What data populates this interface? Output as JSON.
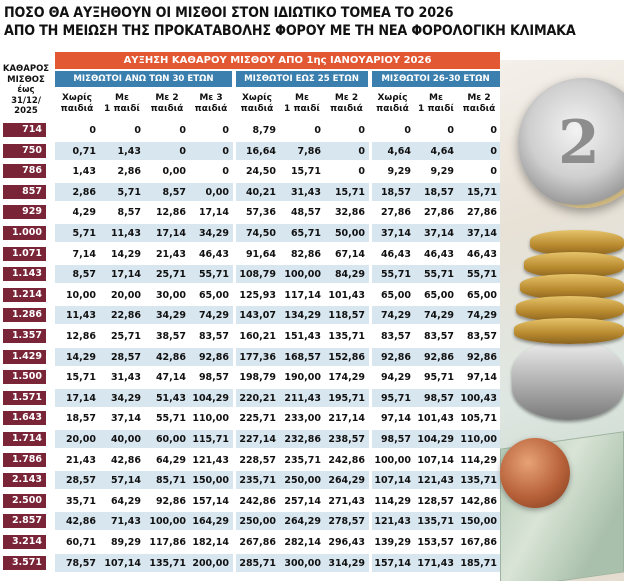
{
  "title_line1": "ΠΟΣΟ ΘΑ ΑΥΞΗΘΟΥΝ ΟΙ ΜΙΣΘΟΙ ΣΤΟΝ ΙΔΙΩΤΙΚΟ ΤΟΜΕΑ ΤΟ 2026",
  "title_line2": "ΑΠΟ ΤΗ ΜΕΙΩΣΗ ΤΗΣ ΠΡΟΚΑΤΑΒΟΛΗΣ ΦΟΡΟΥ ΜΕ ΤΗ ΝΕΑ ΦΟΡΟΛΟΓΙΚΗ ΚΛΙΜΑΚΑ",
  "left_header": [
    "ΚΑΘΑΡΟΣ",
    "ΜΙΣΘΟΣ",
    "έως",
    "31/12/",
    "2025"
  ],
  "banner": "ΑΥΞΗΣΗ ΚΑΘΑΡΟΥ ΜΙΣΘΟΥ ΑΠΟ 1ης ΙΑΝΟΥΑΡΙΟΥ 2026",
  "groups": [
    "ΜΙΣΘΩΤΟΙ ΑΝΩ ΤΩΝ 30 ΕΤΩΝ",
    "ΜΙΣΘΩΤΟΙ ΕΩΣ 25 ΕΤΩΝ",
    "ΜΙΣΘΩΤΟΙ 26-30 ΕΤΩΝ"
  ],
  "sub_headers": [
    [
      "Χωρίς",
      "παιδιά"
    ],
    [
      "Με",
      "1 παιδί"
    ],
    [
      "Με 2",
      "παιδιά"
    ],
    [
      "Με 3",
      "παιδιά"
    ],
    [
      "Χωρίς",
      "παιδιά"
    ],
    [
      "Με",
      "1 παιδί"
    ],
    [
      "Με 2",
      "παιδιά"
    ],
    [
      "Χωρίς",
      "παιδιά"
    ],
    [
      "Με",
      "1 παιδί"
    ],
    [
      "Με 2",
      "παιδιά"
    ]
  ],
  "rows": [
    {
      "salary": "714",
      "values": [
        "0",
        "0",
        "0",
        "0",
        "8,79",
        "0",
        "0",
        "0",
        "0",
        "0"
      ]
    },
    {
      "salary": "750",
      "values": [
        "0,71",
        "1,43",
        "0",
        "0",
        "16,64",
        "7,86",
        "0",
        "4,64",
        "4,64",
        "0"
      ]
    },
    {
      "salary": "786",
      "values": [
        "1,43",
        "2,86",
        "0,00",
        "0",
        "24,50",
        "15,71",
        "0",
        "9,29",
        "9,29",
        "0"
      ]
    },
    {
      "salary": "857",
      "values": [
        "2,86",
        "5,71",
        "8,57",
        "0,00",
        "40,21",
        "31,43",
        "15,71",
        "18,57",
        "18,57",
        "15,71"
      ]
    },
    {
      "salary": "929",
      "values": [
        "4,29",
        "8,57",
        "12,86",
        "17,14",
        "57,36",
        "48,57",
        "32,86",
        "27,86",
        "27,86",
        "27,86"
      ]
    },
    {
      "salary": "1.000",
      "values": [
        "5,71",
        "11,43",
        "17,14",
        "34,29",
        "74,50",
        "65,71",
        "50,00",
        "37,14",
        "37,14",
        "37,14"
      ]
    },
    {
      "salary": "1.071",
      "values": [
        "7,14",
        "14,29",
        "21,43",
        "46,43",
        "91,64",
        "82,86",
        "67,14",
        "46,43",
        "46,43",
        "46,43"
      ]
    },
    {
      "salary": "1.143",
      "values": [
        "8,57",
        "17,14",
        "25,71",
        "55,71",
        "108,79",
        "100,00",
        "84,29",
        "55,71",
        "55,71",
        "55,71"
      ]
    },
    {
      "salary": "1.214",
      "values": [
        "10,00",
        "20,00",
        "30,00",
        "65,00",
        "125,93",
        "117,14",
        "101,43",
        "65,00",
        "65,00",
        "65,00"
      ]
    },
    {
      "salary": "1.286",
      "values": [
        "11,43",
        "22,86",
        "34,29",
        "74,29",
        "143,07",
        "134,29",
        "118,57",
        "74,29",
        "74,29",
        "74,29"
      ]
    },
    {
      "salary": "1.357",
      "values": [
        "12,86",
        "25,71",
        "38,57",
        "83,57",
        "160,21",
        "151,43",
        "135,71",
        "83,57",
        "83,57",
        "83,57"
      ]
    },
    {
      "salary": "1.429",
      "values": [
        "14,29",
        "28,57",
        "42,86",
        "92,86",
        "177,36",
        "168,57",
        "152,86",
        "92,86",
        "92,86",
        "92,86"
      ]
    },
    {
      "salary": "1.500",
      "values": [
        "15,71",
        "31,43",
        "47,14",
        "98,57",
        "198,79",
        "190,00",
        "174,29",
        "94,29",
        "95,71",
        "97,14"
      ]
    },
    {
      "salary": "1.571",
      "values": [
        "17,14",
        "34,29",
        "51,43",
        "104,29",
        "220,21",
        "211,43",
        "195,71",
        "95,71",
        "98,57",
        "100,43"
      ]
    },
    {
      "salary": "1.643",
      "values": [
        "18,57",
        "37,14",
        "55,71",
        "110,00",
        "225,71",
        "233,00",
        "217,14",
        "97,14",
        "101,43",
        "105,71"
      ]
    },
    {
      "salary": "1.714",
      "values": [
        "20,00",
        "40,00",
        "60,00",
        "115,71",
        "227,14",
        "232,86",
        "238,57",
        "98,57",
        "104,29",
        "110,00"
      ]
    },
    {
      "salary": "1.786",
      "values": [
        "21,43",
        "42,86",
        "64,29",
        "121,43",
        "228,57",
        "235,71",
        "242,86",
        "100,00",
        "107,14",
        "114,29"
      ]
    },
    {
      "salary": "2.143",
      "values": [
        "28,57",
        "57,14",
        "85,71",
        "150,00",
        "235,71",
        "250,00",
        "264,29",
        "107,14",
        "121,43",
        "135,71"
      ]
    },
    {
      "salary": "2.500",
      "values": [
        "35,71",
        "64,29",
        "92,86",
        "157,14",
        "242,86",
        "257,14",
        "271,43",
        "114,29",
        "128,57",
        "142,86"
      ]
    },
    {
      "salary": "2.857",
      "values": [
        "42,86",
        "71,43",
        "100,00",
        "164,29",
        "250,00",
        "264,29",
        "278,57",
        "121,43",
        "135,71",
        "150,00"
      ]
    },
    {
      "salary": "3.214",
      "values": [
        "60,71",
        "89,29",
        "117,86",
        "182,14",
        "267,86",
        "282,14",
        "296,43",
        "139,29",
        "153,57",
        "167,86"
      ]
    },
    {
      "salary": "3.571",
      "values": [
        "78,57",
        "107,14",
        "135,71",
        "200,00",
        "285,71",
        "300,00",
        "314,29",
        "157,14",
        "171,43",
        "185,71"
      ]
    }
  ]
}
